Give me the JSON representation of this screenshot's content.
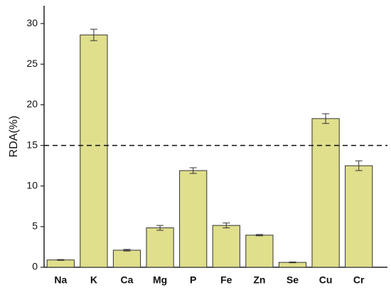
{
  "chart_data": {
    "type": "bar",
    "y_label": "RDA(%)",
    "categories": [
      "Na",
      "K",
      "Ca",
      "Mg",
      "P",
      "Fe",
      "Zn",
      "Se",
      "Cu",
      "Cr"
    ],
    "values": [
      0.9,
      28.6,
      2.1,
      4.85,
      11.9,
      5.15,
      3.95,
      0.6,
      18.3,
      12.5
    ],
    "errors": [
      0.05,
      0.7,
      0.1,
      0.3,
      0.35,
      0.3,
      0.08,
      0.05,
      0.6,
      0.6
    ],
    "color": "#e0df8c",
    "edge_color": "#333333",
    "reference_line": 15,
    "ylim": [
      0,
      32.2
    ],
    "yticks": [
      0,
      5,
      10,
      15,
      20,
      25,
      30
    ],
    "grid": false
  }
}
